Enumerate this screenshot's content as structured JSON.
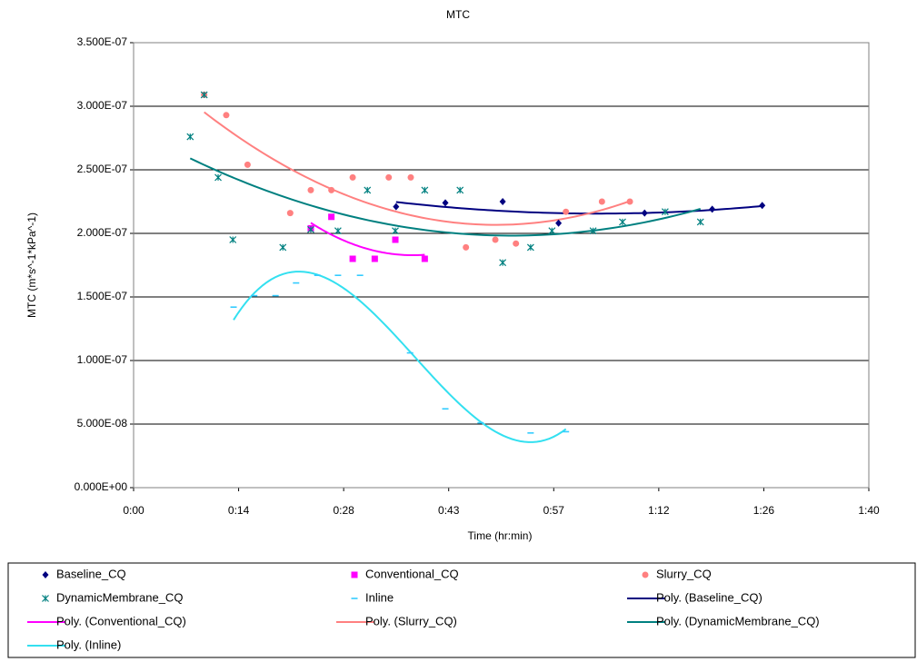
{
  "chart_data": {
    "type": "scatter",
    "title": "MTC",
    "x_label": "Time (hr:min)",
    "y_label": "MTC (m*s^-1*kPa^-1)",
    "xlim": [
      0,
      100
    ],
    "xticks": [
      {
        "value": 0,
        "label": "0:00"
      },
      {
        "value": 14.2857,
        "label": "0:14"
      },
      {
        "value": 28.5714,
        "label": "0:28"
      },
      {
        "value": 42.8571,
        "label": "0:43"
      },
      {
        "value": 57.1429,
        "label": "0:57"
      },
      {
        "value": 71.4286,
        "label": "1:12"
      },
      {
        "value": 85.7143,
        "label": "1:26"
      },
      {
        "value": 100,
        "label": "1:40"
      }
    ],
    "ylim": [
      0,
      3.5e-07
    ],
    "yticks": [
      {
        "value": 0,
        "label": "0.000E+00"
      },
      {
        "value": 5e-08,
        "label": "5.000E-08"
      },
      {
        "value": 1e-07,
        "label": "1.000E-07"
      },
      {
        "value": 1.5e-07,
        "label": "1.500E-07"
      },
      {
        "value": 2e-07,
        "label": "2.000E-07"
      },
      {
        "value": 2.5e-07,
        "label": "2.500E-07"
      },
      {
        "value": 3e-07,
        "label": "3.000E-07"
      },
      {
        "value": 3.5e-07,
        "label": "3.500E-07"
      }
    ],
    "grid": true,
    "legend": "bottom",
    "series": [
      {
        "name": "Baseline_CQ",
        "color": "#000080",
        "marker": "diamond",
        "x": [
          35.7,
          42.4,
          50.2,
          57.8,
          69.5,
          78.7,
          85.5
        ],
        "values": [
          2.21e-07,
          2.24e-07,
          2.25e-07,
          2.08e-07,
          2.16e-07,
          2.19e-07,
          2.22e-07
        ]
      },
      {
        "name": "Conventional_CQ",
        "color": "#ff00ff",
        "marker": "square",
        "x": [
          24.1,
          26.9,
          29.8,
          32.8,
          35.6,
          39.6
        ],
        "values": [
          2.04e-07,
          2.13e-07,
          1.8e-07,
          1.8e-07,
          1.95e-07,
          1.8e-07
        ]
      },
      {
        "name": "Slurry_CQ",
        "color": "#ff8080",
        "marker": "circle",
        "x": [
          9.6,
          12.6,
          15.5,
          21.3,
          24.1,
          26.9,
          29.8,
          34.7,
          37.7,
          45.2,
          49.2,
          52.0,
          58.8,
          63.7,
          67.5
        ],
        "values": [
          3.09e-07,
          2.93e-07,
          2.54e-07,
          2.16e-07,
          2.34e-07,
          2.34e-07,
          2.44e-07,
          2.44e-07,
          2.44e-07,
          1.89e-07,
          1.95e-07,
          1.92e-07,
          2.17e-07,
          2.25e-07,
          2.25e-07
        ]
      },
      {
        "name": "DynamicMembrane_CQ",
        "color": "#008080",
        "marker": "asterisk",
        "x": [
          7.7,
          9.6,
          11.5,
          13.5,
          20.3,
          24.1,
          27.8,
          31.8,
          35.6,
          39.6,
          44.4,
          50.2,
          54.0,
          56.9,
          62.5,
          66.5,
          72.3,
          77.1
        ],
        "values": [
          2.76e-07,
          3.09e-07,
          2.44e-07,
          1.95e-07,
          1.89e-07,
          2.03e-07,
          2.02e-07,
          2.34e-07,
          2.02e-07,
          2.34e-07,
          2.34e-07,
          1.77e-07,
          1.89e-07,
          2.02e-07,
          2.02e-07,
          2.09e-07,
          2.17e-07,
          2.09e-07
        ]
      },
      {
        "name": "Inline",
        "color": "#33ccff",
        "marker": "dash",
        "x": [
          13.6,
          16.4,
          19.3,
          22.1,
          25.0,
          27.8,
          30.8,
          37.6,
          42.4,
          47.2,
          54.0,
          58.8
        ],
        "values": [
          1.42e-07,
          1.51e-07,
          1.51e-07,
          1.61e-07,
          1.67e-07,
          1.67e-07,
          1.67e-07,
          1.06e-07,
          6.2e-08,
          5.1e-08,
          4.3e-08,
          4.4e-08
        ]
      }
    ],
    "trendlines": [
      {
        "name": "Poly. (Baseline_CQ)",
        "color": "#000080",
        "series": 0,
        "order": 2
      },
      {
        "name": "Poly. (Conventional_CQ)",
        "color": "#ff00ff",
        "series": 1,
        "order": 2
      },
      {
        "name": "Poly. (Slurry_CQ)",
        "color": "#ff8080",
        "series": 2,
        "order": 2
      },
      {
        "name": "Poly. (DynamicMembrane_CQ)",
        "color": "#008080",
        "series": 3,
        "order": 2
      },
      {
        "name": "Poly. (Inline)",
        "color": "#33e0f0",
        "series": 4,
        "order": 3
      }
    ]
  }
}
